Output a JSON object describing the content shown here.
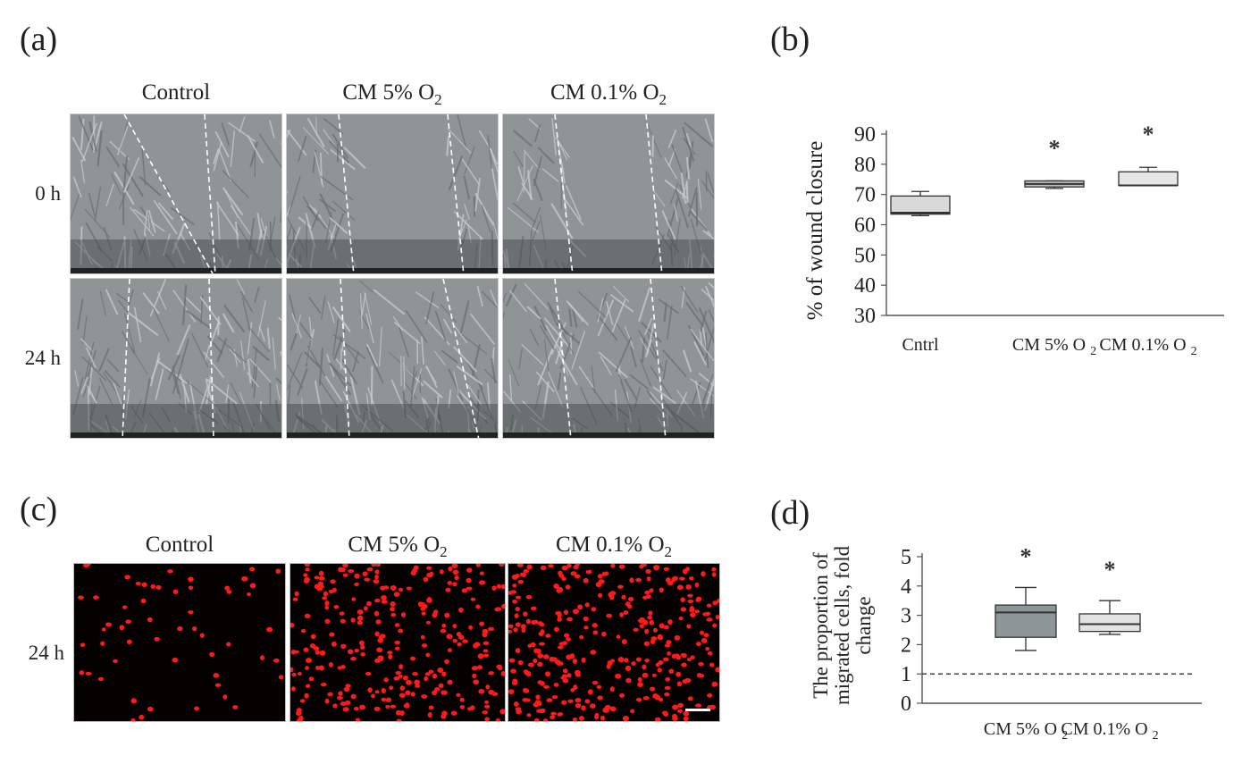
{
  "panels": {
    "a": {
      "letter": "(a)",
      "col_headers": [
        "Control",
        "CM 5% O",
        "CM 0.1% O"
      ],
      "row_labels": [
        "0 h",
        "24 h"
      ]
    },
    "b": {
      "letter": "(b)"
    },
    "c": {
      "letter": "(c)",
      "col_headers": [
        "Control",
        "CM 5% O",
        "CM 0.1% O"
      ],
      "row_label": "24 h"
    },
    "d": {
      "letter": "(d)"
    }
  },
  "subscript": "2",
  "chart_data": [
    {
      "panel": "b",
      "type": "box",
      "ylabel": "% of wound closure",
      "ylim": [
        30,
        90
      ],
      "yticks": [
        30,
        40,
        50,
        60,
        70,
        80,
        90
      ],
      "categories": [
        "Cntrl",
        "CM 5% O2",
        "CM 0.1% O2"
      ],
      "boxes": [
        {
          "min": 63,
          "q1": 63.5,
          "median": 64,
          "q3": 69.5,
          "max": 71,
          "fill": "#d9d9d9",
          "significant": false
        },
        {
          "min": 72,
          "q1": 72.5,
          "median": 73.5,
          "q3": 74.5,
          "max": 74.5,
          "fill": "#bfbfbf",
          "significant": true
        },
        {
          "min": 73,
          "q1": 73,
          "median": 73,
          "q3": 77.5,
          "max": 79,
          "fill": "#e6e6e6",
          "significant": true
        }
      ],
      "significance_marker": "*"
    },
    {
      "panel": "d",
      "type": "box",
      "ylabel_lines": [
        "The proportion of",
        "migrated cells, fold",
        "change"
      ],
      "ylim": [
        0,
        5
      ],
      "yticks": [
        0,
        1,
        2,
        3,
        4,
        5
      ],
      "categories": [
        "CM 5% O2",
        "CM 0.1% O2"
      ],
      "reference_line": 1,
      "boxes": [
        {
          "min": 1.8,
          "q1": 2.25,
          "median": 3.1,
          "q3": 3.35,
          "max": 3.95,
          "fill": "#8c9696",
          "significant": true
        },
        {
          "min": 2.35,
          "q1": 2.45,
          "median": 2.7,
          "q3": 3.05,
          "max": 3.5,
          "fill": "#e3e3e3",
          "significant": true
        }
      ],
      "significance_marker": "*"
    }
  ],
  "colors": {
    "axis": "#555555",
    "cells": "#ff1a1a",
    "fluor_bg": "#050000"
  }
}
